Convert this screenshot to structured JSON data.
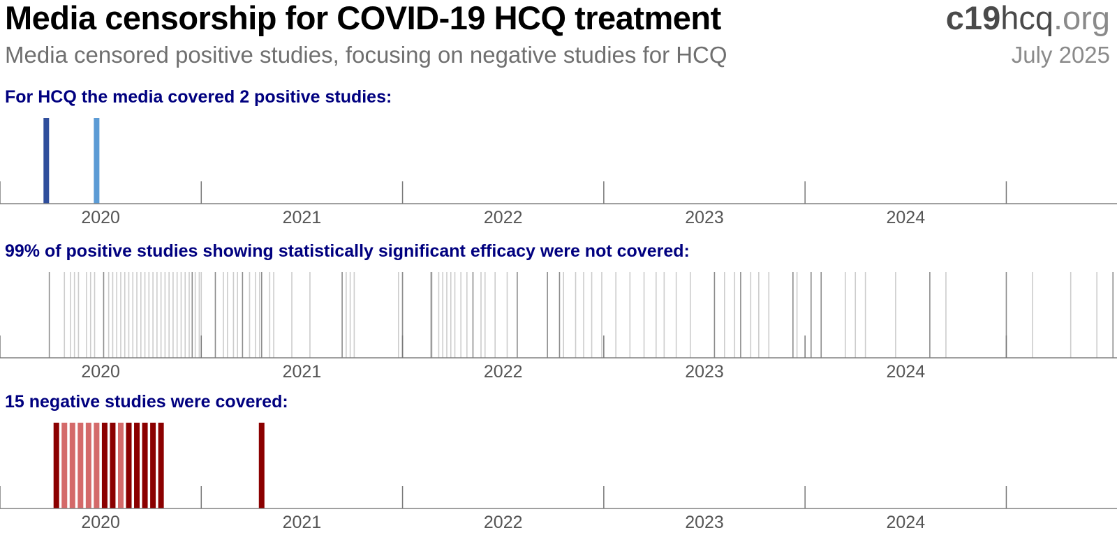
{
  "header": {
    "title": "Media censorship for COVID-19 HCQ treatment",
    "subtitle": "Media censored positive studies, focusing on negative studies for HCQ",
    "brand_bold": "c19",
    "brand_mid": "hcq",
    "brand_end": ".org",
    "date": "July 2025"
  },
  "colors": {
    "label": "#00007f",
    "axis": "#808080",
    "positive_dark": "#2f4e9c",
    "positive_light": "#5b9bd5",
    "uncovered_gray": "#cccccc",
    "uncovered_dark": "#8c8c8c",
    "negative_dark": "#8b0000",
    "negative_light": "#d46a6a"
  },
  "chart_data": [
    {
      "type": "bar",
      "title": "For HCQ the media covered 2 positive studies:",
      "x_ticks": [
        "2020",
        "2021",
        "2022",
        "2023",
        "2024"
      ],
      "x_range": [
        2019.5,
        2025.05
      ],
      "bars": [
        {
          "x": 2019.73,
          "tone": "dark"
        },
        {
          "x": 2019.98,
          "tone": "light"
        }
      ]
    },
    {
      "type": "bar",
      "title": "99% of positive studies showing statistically significant efficacy were not covered:",
      "x_ticks": [
        "2020",
        "2021",
        "2022",
        "2023",
        "2024"
      ],
      "x_range": [
        2019.5,
        2025.05
      ],
      "bars_dark": [
        2019.745,
        2020.015,
        2020.455,
        2020.57,
        2020.705,
        2020.8,
        2021.2,
        2021.5,
        2021.645,
        2021.85,
        2022.07,
        2022.22,
        2022.28,
        2023.05,
        2023.18,
        2023.44,
        2023.53,
        2023.58,
        2024.12,
        2024.5,
        2025.03
      ],
      "bars_light": [
        2019.82,
        2019.85,
        2019.87,
        2019.89,
        2019.93,
        2019.95,
        2019.97,
        2020.04,
        2020.06,
        2020.08,
        2020.1,
        2020.12,
        2020.14,
        2020.16,
        2020.18,
        2020.2,
        2020.22,
        2020.24,
        2020.26,
        2020.28,
        2020.3,
        2020.32,
        2020.34,
        2020.36,
        2020.38,
        2020.4,
        2020.42,
        2020.44,
        2020.47,
        2020.49,
        2020.5,
        2020.61,
        2020.63,
        2020.66,
        2020.68,
        2020.74,
        2020.77,
        2020.79,
        2020.84,
        2020.86,
        2020.95,
        2021.04,
        2021.22,
        2021.24,
        2021.26,
        2021.48,
        2021.5,
        2021.64,
        2021.68,
        2021.7,
        2021.72,
        2021.74,
        2021.76,
        2021.79,
        2021.82,
        2021.89,
        2021.91,
        2021.96,
        2022.02,
        2022.3,
        2022.36,
        2022.4,
        2022.44,
        2022.49,
        2022.56,
        2022.63,
        2022.7,
        2022.76,
        2022.8,
        2022.86,
        2022.93,
        2023.1,
        2023.15,
        2023.23,
        2023.27,
        2023.32,
        2023.46,
        2023.7,
        2023.75,
        2023.8,
        2023.95,
        2024.2,
        2024.63,
        2024.82,
        2024.95
      ]
    },
    {
      "type": "bar",
      "title": "15 negative studies were covered:",
      "x_ticks": [
        "2020",
        "2021",
        "2022",
        "2023",
        "2024"
      ],
      "x_range": [
        2019.5,
        2025.05
      ],
      "bars": [
        {
          "x": 2019.78,
          "tone": "dark"
        },
        {
          "x": 2019.82,
          "tone": "light"
        },
        {
          "x": 2019.86,
          "tone": "light"
        },
        {
          "x": 2019.9,
          "tone": "light"
        },
        {
          "x": 2019.94,
          "tone": "light"
        },
        {
          "x": 2019.98,
          "tone": "light"
        },
        {
          "x": 2020.02,
          "tone": "dark"
        },
        {
          "x": 2020.06,
          "tone": "dark"
        },
        {
          "x": 2020.1,
          "tone": "light"
        },
        {
          "x": 2020.14,
          "tone": "dark"
        },
        {
          "x": 2020.18,
          "tone": "dark"
        },
        {
          "x": 2020.22,
          "tone": "dark"
        },
        {
          "x": 2020.26,
          "tone": "dark"
        },
        {
          "x": 2020.3,
          "tone": "dark"
        },
        {
          "x": 2020.8,
          "tone": "dark"
        }
      ]
    }
  ]
}
